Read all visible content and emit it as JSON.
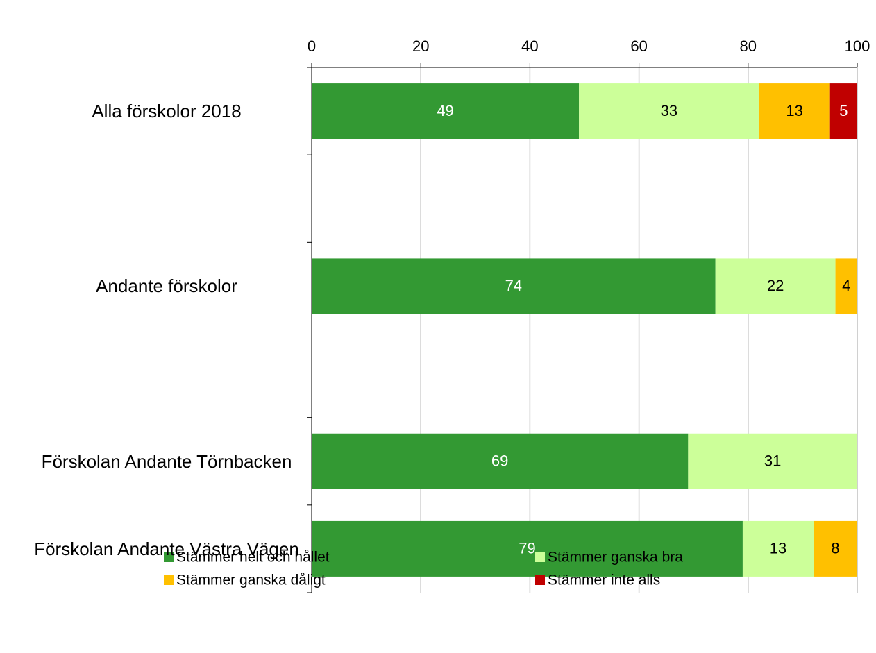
{
  "chart_data": {
    "type": "stacked_barh",
    "categories": [
      "Alla förskolor 2018",
      null,
      "Andante förskolor",
      null,
      "Förskolan Andante Törnbacken",
      "Förskolan Andante Västra Vägen"
    ],
    "series": [
      {
        "name": "Stämmer helt och hållet",
        "color": "#339933",
        "label_color": "#ffffff",
        "values": [
          49,
          null,
          74,
          null,
          69,
          79
        ]
      },
      {
        "name": "Stämmer ganska bra",
        "color": "#ccff99",
        "label_color": "#000000",
        "values": [
          33,
          null,
          22,
          null,
          31,
          13
        ]
      },
      {
        "name": "Stämmer ganska dåligt",
        "color": "#ffc000",
        "label_color": "#000000",
        "values": [
          13,
          null,
          4,
          null,
          null,
          8
        ]
      },
      {
        "name": "Stämmer inte alls",
        "color": "#c00000",
        "label_color": "#ffffff",
        "values": [
          5,
          null,
          null,
          null,
          null,
          null
        ]
      }
    ],
    "xlim": [
      0,
      100
    ],
    "xticks": [
      0,
      20,
      40,
      60,
      80,
      100
    ],
    "grid": true,
    "legend": "bottom"
  }
}
